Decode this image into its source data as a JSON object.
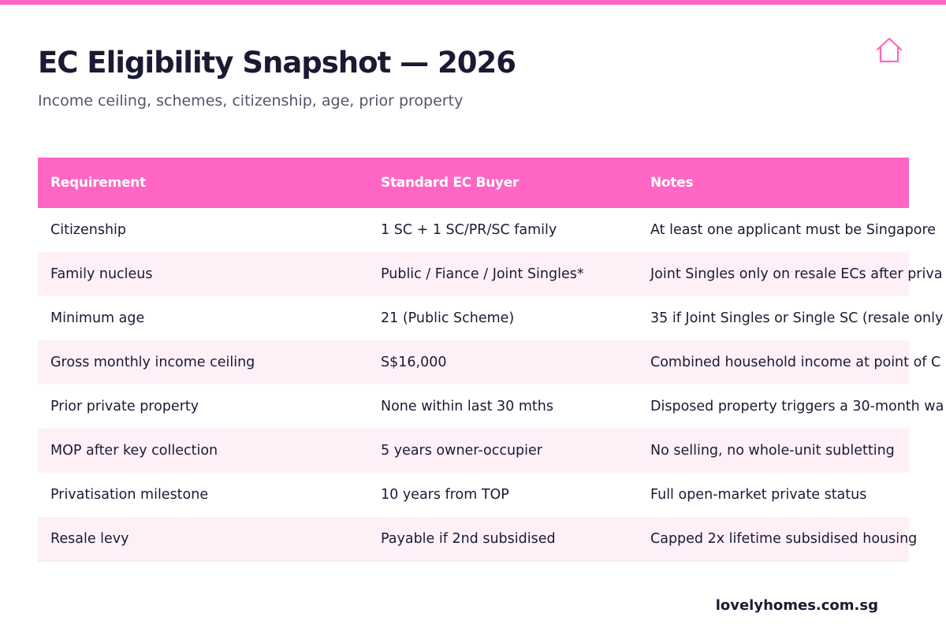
{
  "header": {
    "title": "EC Eligibility Snapshot — 2026",
    "subtitle": "Income ceiling, schemes, citizenship, age, prior property",
    "icon": "home-icon"
  },
  "colors": {
    "accent": "#ff66c4",
    "row_alt": "#fff0f8",
    "text": "#1b1a33",
    "muted": "#55546a"
  },
  "table": {
    "headers": [
      "Requirement",
      "Standard EC Buyer",
      "Notes"
    ],
    "rows": [
      [
        "Citizenship",
        "1 SC + 1 SC/PR/SC family",
        "At least one applicant must be Singapore"
      ],
      [
        "Family nucleus",
        "Public / Fiance / Joint Singles*",
        "Joint Singles only on resale ECs after priva"
      ],
      [
        "Minimum age",
        "21 (Public Scheme)",
        "35 if Joint Singles or Single SC (resale only"
      ],
      [
        "Gross monthly income ceiling",
        "S$16,000",
        "Combined household income at point of C"
      ],
      [
        "Prior private property",
        "None within last 30 mths",
        "Disposed property triggers a 30-month wa"
      ],
      [
        "MOP after key collection",
        "5 years owner-occupier",
        "No selling, no whole-unit subletting"
      ],
      [
        "Privatisation milestone",
        "10 years from TOP",
        "Full open-market private status"
      ],
      [
        "Resale levy",
        "Payable if 2nd subsidised",
        "Capped 2x lifetime subsidised housing"
      ]
    ]
  },
  "footer": {
    "site": "lovelyhomes.com.sg"
  }
}
